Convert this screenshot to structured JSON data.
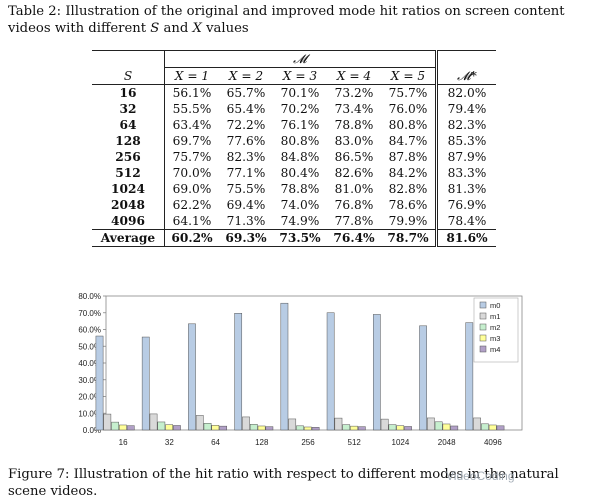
{
  "table": {
    "caption_prefix": "Table 2: Illustration of the original and improved mode hit ratios on screen content videos with different",
    "caption_s": "S",
    "caption_and": "and",
    "caption_x": "X",
    "caption_suffix": "values",
    "group_header": "𝓜",
    "s_header": "S",
    "star_header": "𝓜*",
    "columns": [
      "X = 1",
      "X = 2",
      "X = 3",
      "X = 4",
      "X = 5"
    ],
    "rows": [
      {
        "s": "16",
        "vals": [
          "56.1%",
          "65.7%",
          "70.1%",
          "73.2%",
          "75.7%"
        ],
        "star": "82.0%"
      },
      {
        "s": "32",
        "vals": [
          "55.5%",
          "65.4%",
          "70.2%",
          "73.4%",
          "76.0%"
        ],
        "star": "79.4%"
      },
      {
        "s": "64",
        "vals": [
          "63.4%",
          "72.2%",
          "76.1%",
          "78.8%",
          "80.8%"
        ],
        "star": "82.3%"
      },
      {
        "s": "128",
        "vals": [
          "69.7%",
          "77.6%",
          "80.8%",
          "83.0%",
          "84.7%"
        ],
        "star": "85.3%"
      },
      {
        "s": "256",
        "vals": [
          "75.7%",
          "82.3%",
          "84.8%",
          "86.5%",
          "87.8%"
        ],
        "star": "87.9%"
      },
      {
        "s": "512",
        "vals": [
          "70.0%",
          "77.1%",
          "80.4%",
          "82.6%",
          "84.2%"
        ],
        "star": "83.3%"
      },
      {
        "s": "1024",
        "vals": [
          "69.0%",
          "75.5%",
          "78.8%",
          "81.0%",
          "82.8%"
        ],
        "star": "81.3%"
      },
      {
        "s": "2048",
        "vals": [
          "62.2%",
          "69.4%",
          "74.0%",
          "76.8%",
          "78.6%"
        ],
        "star": "76.9%"
      },
      {
        "s": "4096",
        "vals": [
          "64.1%",
          "71.3%",
          "74.9%",
          "77.8%",
          "79.9%"
        ],
        "star": "78.4%"
      }
    ],
    "average": {
      "label": "Average",
      "vals": [
        "60.2%",
        "69.3%",
        "73.5%",
        "76.4%",
        "78.7%"
      ],
      "star": "81.6%"
    }
  },
  "chart_data": {
    "type": "bar",
    "categories": [
      "16",
      "32",
      "64",
      "128",
      "256",
      "512",
      "1024",
      "2048",
      "4096"
    ],
    "series": [
      {
        "name": "m0",
        "values": [
          56.1,
          55.5,
          63.4,
          69.7,
          75.7,
          70.0,
          69.0,
          62.2,
          64.1
        ]
      },
      {
        "name": "m1",
        "values": [
          9.5,
          9.6,
          8.7,
          7.8,
          6.6,
          7.1,
          6.5,
          7.2,
          7.2
        ]
      },
      {
        "name": "m2",
        "values": [
          4.7,
          4.8,
          4.0,
          3.4,
          2.5,
          3.2,
          3.2,
          4.9,
          3.7
        ]
      },
      {
        "name": "m3",
        "values": [
          3.0,
          3.2,
          2.8,
          2.4,
          1.8,
          2.3,
          2.6,
          3.6,
          3.0
        ]
      },
      {
        "name": "m4",
        "values": [
          2.6,
          2.7,
          2.3,
          2.0,
          1.6,
          2.0,
          2.1,
          2.4,
          2.5
        ]
      }
    ],
    "colors": [
      "#b8cce4",
      "#d9d9d9",
      "#c6efce",
      "#ffff99",
      "#b1a0c7"
    ],
    "ylim": [
      0,
      80
    ],
    "yticks": [
      "0.0%",
      "10.0%",
      "20.0%",
      "30.0%",
      "40.0%",
      "50.0%",
      "60.0%",
      "70.0%",
      "80.0%"
    ],
    "grid": false,
    "legend": "top-right",
    "title": "",
    "xlabel": "",
    "ylabel": ""
  },
  "figure": {
    "caption": "Figure 7: Illustration of the hit ratio with respect to different modes in the natural scene videos."
  },
  "watermark": "VideoCoding"
}
